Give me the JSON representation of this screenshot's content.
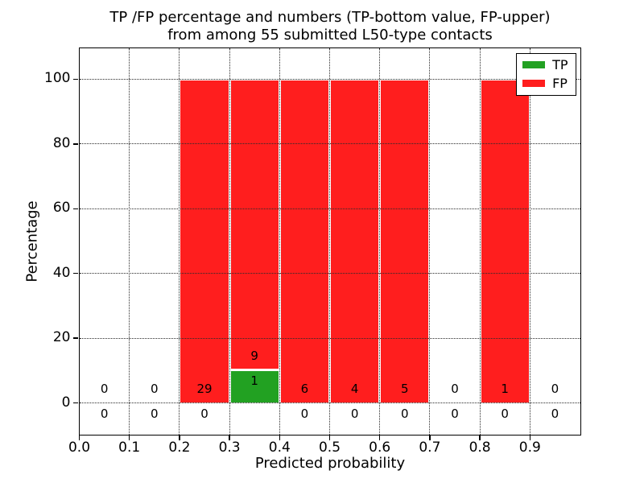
{
  "chart_data": {
    "type": "bar",
    "stacked": true,
    "title_lines": [
      "TP /FP percentage and numbers (TP-bottom value, FP-upper)",
      "from among 55 submitted L50-type contacts"
    ],
    "xlabel": "Predicted probability",
    "ylabel": "Percentage",
    "total_submitted": 55,
    "xlim": [
      0.0,
      1.0
    ],
    "ylim": [
      -9.7,
      109.7
    ],
    "x_ticks": [
      {
        "value": 0.0,
        "label": "0.0"
      },
      {
        "value": 0.1,
        "label": "0.1"
      },
      {
        "value": 0.2,
        "label": "0.2"
      },
      {
        "value": 0.3,
        "label": "0.3"
      },
      {
        "value": 0.4,
        "label": "0.4"
      },
      {
        "value": 0.5,
        "label": "0.5"
      },
      {
        "value": 0.6,
        "label": "0.6"
      },
      {
        "value": 0.7,
        "label": "0.7"
      },
      {
        "value": 0.8,
        "label": "0.8"
      },
      {
        "value": 0.9,
        "label": "0.9"
      }
    ],
    "y_ticks": [
      {
        "value": 0,
        "label": "0"
      },
      {
        "value": 20,
        "label": "20"
      },
      {
        "value": 40,
        "label": "40"
      },
      {
        "value": 60,
        "label": "60"
      },
      {
        "value": 80,
        "label": "80"
      },
      {
        "value": 100,
        "label": "100"
      }
    ],
    "grid": {
      "style": "dotted",
      "above_bars": true
    },
    "legend": {
      "position": "upper right",
      "entries": [
        {
          "label": "TP",
          "color": "#22a122"
        },
        {
          "label": "FP",
          "color": "#ff1e1e"
        }
      ]
    },
    "bins": [
      {
        "range": [
          0.0,
          0.1
        ],
        "tp": 0,
        "fp": 0,
        "tp_pct": 0,
        "fp_pct": 0
      },
      {
        "range": [
          0.1,
          0.2
        ],
        "tp": 0,
        "fp": 0,
        "tp_pct": 0,
        "fp_pct": 0
      },
      {
        "range": [
          0.2,
          0.3
        ],
        "tp": 0,
        "fp": 29,
        "tp_pct": 0,
        "fp_pct": 100
      },
      {
        "range": [
          0.3,
          0.4
        ],
        "tp": 1,
        "fp": 9,
        "tp_pct": 10,
        "fp_pct": 90
      },
      {
        "range": [
          0.4,
          0.5
        ],
        "tp": 0,
        "fp": 6,
        "tp_pct": 0,
        "fp_pct": 100
      },
      {
        "range": [
          0.5,
          0.6
        ],
        "tp": 0,
        "fp": 4,
        "tp_pct": 0,
        "fp_pct": 100
      },
      {
        "range": [
          0.6,
          0.7
        ],
        "tp": 0,
        "fp": 5,
        "tp_pct": 0,
        "fp_pct": 100
      },
      {
        "range": [
          0.7,
          0.8
        ],
        "tp": 0,
        "fp": 0,
        "tp_pct": 0,
        "fp_pct": 0
      },
      {
        "range": [
          0.8,
          0.9
        ],
        "tp": 0,
        "fp": 1,
        "tp_pct": 0,
        "fp_pct": 100
      },
      {
        "range": [
          0.9,
          1.0
        ],
        "tp": 0,
        "fp": 0,
        "tp_pct": 0,
        "fp_pct": 0
      }
    ],
    "colors": {
      "tp": "#22a122",
      "fp": "#ff1e1e",
      "background": "#ffffff",
      "spine": "#000000",
      "text": "#000000"
    }
  }
}
